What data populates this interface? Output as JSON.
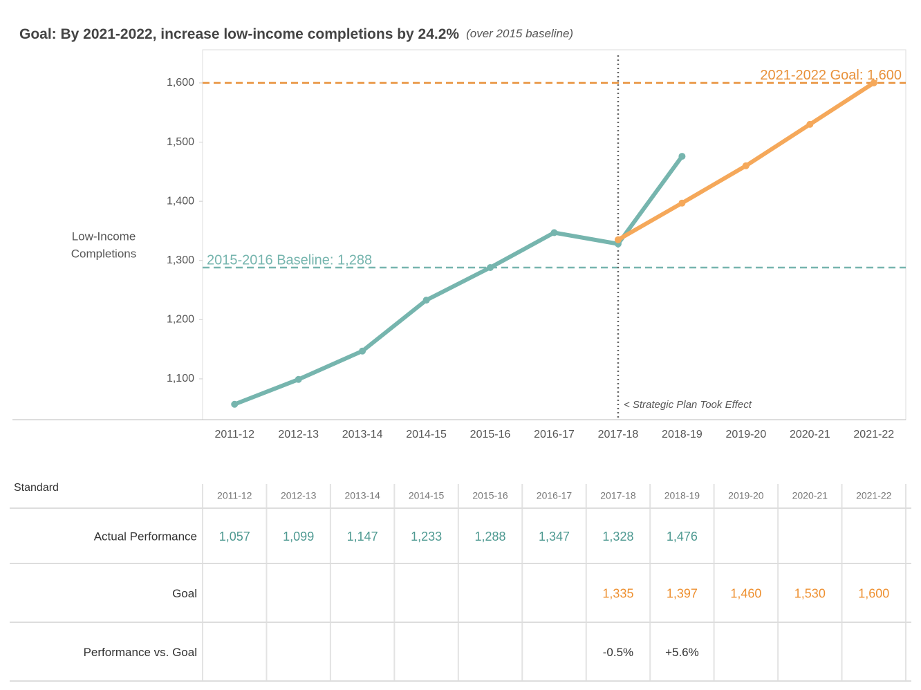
{
  "chart_data": {
    "type": "line",
    "title": "Goal: By 2021-2022, increase low-income completions by 24.2%",
    "subtitle": "(over 2015 baseline)",
    "y_label": [
      "Low-Income",
      "Completions"
    ],
    "categories": [
      "2011-12",
      "2012-13",
      "2013-14",
      "2014-15",
      "2015-16",
      "2016-17",
      "2017-18",
      "2018-19",
      "2019-20",
      "2020-21",
      "2021-22"
    ],
    "series": [
      {
        "name": "Actual Performance",
        "color": "#76b5ae",
        "values": [
          1057,
          1099,
          1147,
          1233,
          1288,
          1347,
          1328,
          1476,
          null,
          null,
          null
        ],
        "value_labels": [
          "1,057",
          "1,099",
          "1,147",
          "1,233",
          "1,288",
          "1,347",
          "1,328",
          "1,476",
          null,
          null,
          null
        ]
      },
      {
        "name": "Goal",
        "color": "#f5a85a",
        "values": [
          null,
          null,
          null,
          null,
          null,
          null,
          1335,
          1397,
          1460,
          1530,
          1600
        ],
        "value_labels": [
          null,
          null,
          null,
          null,
          null,
          null,
          "1,335",
          "1,397",
          "1,460",
          "1,530",
          "1,600"
        ]
      }
    ],
    "reference_lines": [
      {
        "value": 1288,
        "label": "2015-2016 Baseline: 1,288",
        "color": "#76b5ae"
      },
      {
        "value": 1600,
        "label": "2021-2022 Goal: 1,600",
        "color": "#e8913a"
      }
    ],
    "event": {
      "category_index": 6,
      "label": "< Strategic Plan Took Effect"
    },
    "ylim": [
      1031,
      1656
    ],
    "yticks": [
      {
        "value": 1100,
        "label": "1,100"
      },
      {
        "value": 1200,
        "label": "1,200"
      },
      {
        "value": 1300,
        "label": "1,300"
      },
      {
        "value": 1400,
        "label": "1,400"
      },
      {
        "value": 1500,
        "label": "1,500"
      },
      {
        "value": 1600,
        "label": "1,600"
      }
    ],
    "grid": false
  },
  "table": {
    "header": "Standard",
    "row_labels": [
      "Actual Performance",
      "Goal",
      "Performance vs. Goal"
    ],
    "comparison": [
      null,
      null,
      null,
      null,
      null,
      null,
      "-0.5%",
      "+5.6%",
      null,
      null,
      null
    ]
  }
}
